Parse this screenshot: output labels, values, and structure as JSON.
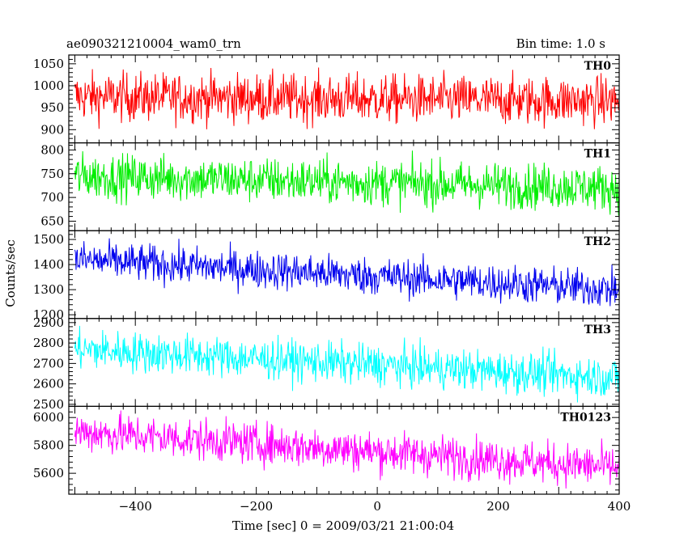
{
  "chart_data": {
    "type": "line",
    "title": "ae090321210004_wam0_trn",
    "subtitle": "Bin time: 1.0 s",
    "xlabel": "Time [sec] 0 = 2009/03/21 21:00:04",
    "ylabel": "Counts/sec",
    "xlim": [
      -510,
      400
    ],
    "xticks": [
      -400,
      -200,
      0,
      200,
      400
    ],
    "grid": false,
    "panels": [
      {
        "name": "TH0",
        "color": "#ff0000",
        "ylim": [
          870,
          1070
        ],
        "yticks": [
          900,
          950,
          1000,
          1050
        ],
        "start_level": 975,
        "end_level": 965,
        "noise": 28
      },
      {
        "name": "TH1",
        "color": "#00ee00",
        "ylim": [
          630,
          815
        ],
        "yticks": [
          650,
          700,
          750,
          800
        ],
        "start_level": 745,
        "end_level": 720,
        "noise": 24
      },
      {
        "name": "TH2",
        "color": "#0000ee",
        "ylim": [
          1185,
          1535
        ],
        "yticks": [
          1200,
          1300,
          1400,
          1500
        ],
        "start_level": 1420,
        "end_level": 1300,
        "noise": 38
      },
      {
        "name": "TH3",
        "color": "#00ffff",
        "ylim": [
          2490,
          2920
        ],
        "yticks": [
          2500,
          2600,
          2700,
          2800,
          2900
        ],
        "start_level": 2770,
        "end_level": 2630,
        "noise": 50
      },
      {
        "name": "TH0123",
        "color": "#ff00ff",
        "ylim": [
          5450,
          6080
        ],
        "yticks": [
          5600,
          5800,
          6000
        ],
        "start_level": 5900,
        "end_level": 5640,
        "noise": 75
      }
    ]
  }
}
